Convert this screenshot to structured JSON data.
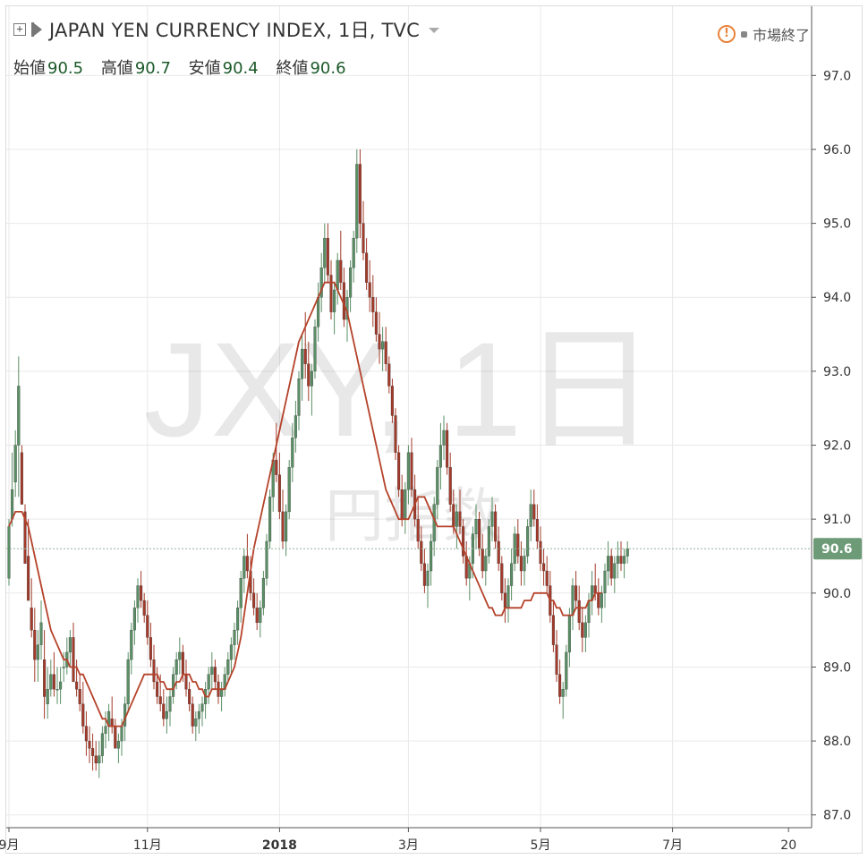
{
  "header": {
    "title": "JAPAN YEN CURRENCY INDEX, 1日, TVC",
    "market_status": "市場終了"
  },
  "ohlc": {
    "open_label": "始値",
    "open": "90.5",
    "high_label": "高値",
    "high": "90.7",
    "low_label": "安値",
    "low": "90.4",
    "close_label": "終値",
    "close": "90.6"
  },
  "watermark": {
    "symbol": "JXY, 1日",
    "name": "円指数"
  },
  "colors": {
    "up": "#5a8f65",
    "down": "#a33a2a",
    "ma": "#b5422a",
    "grid": "#e9e9e9",
    "price_tag": "#6d9a77",
    "price_line": "#8db39a"
  },
  "chart_data": {
    "type": "candlestick",
    "ylim": [
      86.9,
      97.5
    ],
    "y_ticks": [
      "87.0",
      "88.0",
      "89.0",
      "90.0",
      "91.0",
      "92.0",
      "93.0",
      "94.0",
      "95.0",
      "96.0",
      "97.0"
    ],
    "x_ticks": [
      {
        "label": "9月",
        "bar": 0
      },
      {
        "label": "11月",
        "bar": 43
      },
      {
        "label": "2018",
        "bar": 84
      },
      {
        "label": "3月",
        "bar": 124
      },
      {
        "label": "5月",
        "bar": 165
      },
      {
        "label": "7月",
        "bar": 206
      },
      {
        "label": "20",
        "bar": 242
      }
    ],
    "last_price": "90.6",
    "ma_series": "moving average",
    "ohlc_data": [
      [
        90.2,
        91.0,
        90.1,
        90.9
      ],
      [
        91.0,
        91.9,
        90.9,
        91.4
      ],
      [
        91.5,
        92.2,
        91.3,
        92.0
      ],
      [
        92.0,
        93.2,
        91.3,
        92.8
      ],
      [
        91.9,
        92.0,
        91.2,
        91.2
      ],
      [
        91.1,
        91.2,
        90.4,
        90.4
      ],
      [
        90.5,
        91.0,
        89.9,
        89.9
      ],
      [
        89.8,
        90.2,
        89.4,
        89.5
      ],
      [
        89.5,
        89.8,
        88.8,
        89.1
      ],
      [
        89.1,
        89.5,
        88.8,
        89.3
      ],
      [
        89.3,
        89.9,
        89.1,
        89.6
      ],
      [
        89.1,
        89.5,
        88.3,
        88.6
      ],
      [
        88.5,
        89.0,
        88.3,
        88.7
      ],
      [
        88.7,
        89.1,
        88.6,
        88.9
      ],
      [
        88.9,
        89.2,
        88.6,
        88.7
      ],
      [
        88.7,
        89.0,
        88.5,
        88.7
      ],
      [
        88.7,
        89.0,
        88.5,
        88.8
      ],
      [
        89.0,
        89.2,
        88.8,
        89.0
      ],
      [
        89.0,
        89.4,
        88.9,
        89.2
      ],
      [
        89.2,
        89.5,
        89.0,
        89.4
      ],
      [
        89.4,
        89.6,
        88.8,
        88.8
      ],
      [
        88.8,
        89.1,
        88.6,
        88.7
      ],
      [
        88.7,
        88.9,
        88.4,
        88.5
      ],
      [
        88.5,
        88.8,
        88.1,
        88.2
      ],
      [
        88.2,
        88.4,
        87.8,
        88.0
      ],
      [
        88.0,
        88.2,
        87.7,
        87.9
      ],
      [
        87.9,
        88.1,
        87.6,
        87.8
      ],
      [
        87.8,
        88.0,
        87.6,
        87.7
      ],
      [
        87.7,
        88.0,
        87.5,
        87.8
      ],
      [
        87.8,
        88.2,
        87.7,
        88.1
      ],
      [
        88.1,
        88.4,
        87.9,
        88.2
      ],
      [
        88.2,
        88.5,
        88.0,
        88.4
      ],
      [
        88.3,
        88.6,
        88.1,
        88.2
      ],
      [
        88.2,
        88.3,
        87.9,
        87.9
      ],
      [
        87.9,
        88.1,
        87.7,
        88.0
      ],
      [
        88.0,
        88.3,
        87.8,
        88.2
      ],
      [
        88.2,
        88.6,
        88.0,
        88.5
      ],
      [
        88.5,
        89.2,
        88.4,
        89.1
      ],
      [
        89.1,
        89.6,
        88.9,
        89.5
      ],
      [
        89.5,
        89.9,
        89.3,
        89.8
      ],
      [
        89.8,
        90.2,
        89.6,
        90.1
      ],
      [
        90.1,
        90.3,
        89.8,
        89.9
      ],
      [
        89.9,
        90.0,
        89.6,
        89.7
      ],
      [
        89.7,
        89.9,
        89.3,
        89.4
      ],
      [
        89.4,
        89.6,
        89.0,
        89.1
      ],
      [
        89.1,
        89.3,
        88.7,
        88.8
      ],
      [
        88.8,
        89.0,
        88.5,
        88.6
      ],
      [
        88.6,
        88.9,
        88.4,
        88.5
      ],
      [
        88.5,
        88.7,
        88.2,
        88.3
      ],
      [
        88.3,
        88.6,
        88.1,
        88.4
      ],
      [
        88.4,
        88.7,
        88.2,
        88.6
      ],
      [
        88.6,
        89.0,
        88.5,
        88.9
      ],
      [
        88.9,
        89.2,
        88.7,
        89.1
      ],
      [
        89.1,
        89.4,
        88.9,
        89.2
      ],
      [
        89.2,
        89.3,
        88.8,
        88.9
      ],
      [
        88.9,
        89.1,
        88.6,
        88.7
      ],
      [
        88.7,
        88.8,
        88.4,
        88.5
      ],
      [
        88.5,
        88.6,
        88.1,
        88.2
      ],
      [
        88.2,
        88.4,
        88.0,
        88.3
      ],
      [
        88.3,
        88.5,
        88.1,
        88.4
      ],
      [
        88.4,
        88.6,
        88.2,
        88.5
      ],
      [
        88.5,
        88.8,
        88.3,
        88.7
      ],
      [
        88.7,
        89.0,
        88.5,
        88.9
      ],
      [
        88.9,
        89.2,
        88.7,
        89.0
      ],
      [
        89.0,
        89.1,
        88.7,
        88.8
      ],
      [
        88.8,
        88.9,
        88.5,
        88.6
      ],
      [
        88.6,
        88.8,
        88.4,
        88.7
      ],
      [
        88.7,
        89.0,
        88.6,
        88.9
      ],
      [
        88.9,
        89.2,
        88.8,
        89.1
      ],
      [
        89.1,
        89.4,
        88.9,
        89.3
      ],
      [
        89.3,
        89.6,
        89.1,
        89.5
      ],
      [
        89.5,
        89.9,
        89.3,
        89.8
      ],
      [
        89.8,
        90.3,
        89.6,
        90.2
      ],
      [
        90.2,
        90.6,
        90.0,
        90.5
      ],
      [
        90.5,
        90.8,
        90.2,
        90.3
      ],
      [
        90.3,
        90.5,
        89.9,
        90.0
      ],
      [
        90.0,
        90.2,
        89.7,
        89.8
      ],
      [
        89.8,
        90.0,
        89.5,
        89.6
      ],
      [
        89.6,
        89.9,
        89.4,
        89.8
      ],
      [
        89.8,
        90.3,
        89.7,
        90.2
      ],
      [
        90.2,
        90.8,
        90.1,
        90.7
      ],
      [
        90.7,
        91.4,
        90.6,
        91.3
      ],
      [
        91.3,
        91.9,
        91.1,
        91.8
      ],
      [
        91.8,
        92.3,
        91.5,
        91.6
      ],
      [
        91.6,
        91.9,
        91.0,
        91.1
      ],
      [
        91.1,
        91.4,
        90.6,
        90.7
      ],
      [
        90.7,
        91.2,
        90.5,
        91.1
      ],
      [
        91.1,
        91.8,
        91.0,
        91.7
      ],
      [
        91.7,
        92.3,
        91.5,
        92.1
      ],
      [
        92.1,
        92.6,
        91.9,
        92.4
      ],
      [
        92.4,
        93.0,
        92.2,
        92.9
      ],
      [
        92.9,
        93.5,
        92.6,
        93.3
      ],
      [
        93.3,
        93.8,
        92.9,
        93.1
      ],
      [
        93.1,
        93.4,
        92.6,
        92.8
      ],
      [
        92.8,
        93.1,
        92.4,
        93.0
      ],
      [
        93.0,
        93.7,
        92.9,
        93.6
      ],
      [
        93.6,
        94.2,
        93.4,
        94.0
      ],
      [
        94.0,
        94.6,
        93.8,
        94.4
      ],
      [
        94.4,
        95.0,
        94.2,
        94.8
      ],
      [
        94.8,
        95.0,
        94.2,
        94.3
      ],
      [
        94.3,
        94.5,
        93.7,
        93.8
      ],
      [
        93.8,
        94.2,
        93.5,
        94.1
      ],
      [
        94.1,
        94.6,
        93.9,
        94.5
      ],
      [
        94.5,
        94.9,
        94.1,
        94.2
      ],
      [
        94.2,
        94.4,
        93.6,
        93.7
      ],
      [
        93.7,
        94.1,
        93.4,
        94.0
      ],
      [
        94.0,
        94.5,
        93.8,
        94.4
      ],
      [
        94.4,
        94.9,
        94.2,
        94.8
      ],
      [
        94.8,
        96.0,
        94.6,
        95.8
      ],
      [
        95.8,
        96.0,
        94.8,
        95.0
      ],
      [
        95.0,
        95.3,
        94.5,
        94.6
      ],
      [
        94.6,
        94.8,
        94.1,
        94.2
      ],
      [
        94.2,
        94.5,
        93.8,
        94.0
      ],
      [
        94.0,
        94.3,
        93.6,
        93.8
      ],
      [
        93.8,
        94.0,
        93.4,
        93.5
      ],
      [
        93.5,
        93.8,
        93.1,
        93.3
      ],
      [
        93.3,
        93.6,
        93.0,
        93.4
      ],
      [
        93.4,
        93.6,
        93.0,
        93.1
      ],
      [
        93.1,
        93.2,
        92.7,
        92.8
      ],
      [
        92.8,
        92.9,
        92.3,
        92.4
      ],
      [
        92.4,
        92.5,
        91.8,
        91.9
      ],
      [
        91.9,
        92.0,
        91.3,
        91.4
      ],
      [
        91.4,
        91.6,
        90.9,
        91.0
      ],
      [
        91.0,
        91.5,
        90.8,
        91.4
      ],
      [
        91.4,
        92.0,
        91.2,
        91.9
      ],
      [
        91.9,
        92.1,
        91.3,
        91.4
      ],
      [
        91.4,
        91.6,
        90.9,
        91.0
      ],
      [
        91.0,
        91.3,
        90.6,
        90.7
      ],
      [
        90.7,
        90.9,
        90.3,
        90.4
      ],
      [
        90.4,
        90.6,
        90.0,
        90.1
      ],
      [
        90.1,
        90.4,
        89.8,
        90.3
      ],
      [
        90.3,
        90.8,
        90.1,
        90.7
      ],
      [
        90.7,
        91.3,
        90.5,
        91.2
      ],
      [
        91.2,
        91.8,
        91.0,
        91.7
      ],
      [
        91.7,
        92.3,
        91.4,
        92.0
      ],
      [
        92.0,
        92.4,
        91.8,
        92.2
      ],
      [
        92.2,
        92.3,
        91.6,
        91.7
      ],
      [
        91.7,
        91.9,
        91.1,
        91.2
      ],
      [
        91.2,
        91.4,
        90.8,
        90.9
      ],
      [
        90.9,
        91.2,
        90.6,
        91.1
      ],
      [
        91.1,
        91.4,
        90.8,
        90.9
      ],
      [
        90.9,
        91.0,
        90.4,
        90.5
      ],
      [
        90.5,
        90.7,
        90.1,
        90.2
      ],
      [
        90.2,
        90.5,
        89.9,
        90.4
      ],
      [
        90.4,
        90.9,
        90.2,
        90.8
      ],
      [
        90.8,
        91.2,
        90.6,
        91.0
      ],
      [
        91.0,
        91.1,
        90.5,
        90.6
      ],
      [
        90.6,
        90.8,
        90.2,
        90.3
      ],
      [
        90.3,
        90.6,
        90.1,
        90.5
      ],
      [
        90.5,
        91.0,
        90.4,
        90.9
      ],
      [
        90.9,
        91.3,
        90.7,
        91.1
      ],
      [
        91.1,
        91.2,
        90.6,
        90.7
      ],
      [
        90.7,
        90.9,
        90.3,
        90.4
      ],
      [
        90.4,
        90.5,
        89.9,
        90.0
      ],
      [
        90.0,
        90.2,
        89.6,
        89.8
      ],
      [
        89.8,
        90.2,
        89.6,
        90.1
      ],
      [
        90.1,
        90.6,
        89.9,
        90.4
      ],
      [
        90.4,
        90.9,
        90.3,
        90.8
      ],
      [
        90.8,
        91.0,
        90.4,
        90.5
      ],
      [
        90.5,
        90.7,
        90.1,
        90.3
      ],
      [
        90.3,
        90.6,
        90.1,
        90.5
      ],
      [
        90.5,
        91.0,
        90.4,
        90.9
      ],
      [
        90.9,
        91.4,
        90.7,
        91.2
      ],
      [
        91.2,
        91.4,
        90.9,
        91.0
      ],
      [
        91.0,
        91.2,
        90.6,
        90.7
      ],
      [
        90.7,
        90.9,
        90.3,
        90.4
      ],
      [
        90.4,
        90.6,
        90.1,
        90.3
      ],
      [
        90.3,
        90.5,
        90.0,
        90.1
      ],
      [
        90.1,
        90.3,
        89.6,
        89.7
      ],
      [
        89.7,
        89.9,
        89.2,
        89.3
      ],
      [
        89.3,
        89.5,
        88.8,
        88.9
      ],
      [
        88.9,
        89.1,
        88.5,
        88.6
      ],
      [
        88.6,
        88.8,
        88.3,
        88.7
      ],
      [
        88.7,
        89.3,
        88.6,
        89.2
      ],
      [
        89.2,
        89.8,
        89.0,
        89.7
      ],
      [
        89.7,
        90.2,
        89.5,
        90.1
      ],
      [
        90.1,
        90.3,
        89.8,
        89.9
      ],
      [
        89.9,
        90.1,
        89.5,
        89.6
      ],
      [
        89.6,
        89.8,
        89.2,
        89.4
      ],
      [
        89.4,
        89.7,
        89.2,
        89.6
      ],
      [
        89.6,
        90.0,
        89.4,
        89.9
      ],
      [
        89.9,
        90.3,
        89.7,
        90.1
      ],
      [
        90.1,
        90.4,
        89.9,
        90.0
      ],
      [
        90.0,
        90.2,
        89.7,
        89.8
      ],
      [
        89.8,
        90.1,
        89.6,
        90.0
      ],
      [
        90.0,
        90.4,
        89.8,
        90.3
      ],
      [
        90.3,
        90.7,
        90.1,
        90.5
      ],
      [
        90.5,
        90.6,
        90.1,
        90.2
      ],
      [
        90.2,
        90.5,
        90.0,
        90.4
      ],
      [
        90.4,
        90.7,
        90.2,
        90.5
      ],
      [
        90.5,
        90.7,
        90.3,
        90.4
      ],
      [
        90.4,
        90.6,
        90.2,
        90.5
      ],
      [
        90.5,
        90.7,
        90.4,
        90.6
      ]
    ],
    "ma_values": [
      90.9,
      91.0,
      91.1,
      91.1,
      91.1,
      91.0,
      90.9,
      90.7,
      90.5,
      90.3,
      90.1,
      89.9,
      89.7,
      89.5,
      89.4,
      89.3,
      89.2,
      89.1,
      89.1,
      89.0,
      89.0,
      89.0,
      88.9,
      88.9,
      88.8,
      88.7,
      88.6,
      88.5,
      88.4,
      88.3,
      88.3,
      88.2,
      88.2,
      88.2,
      88.2,
      88.2,
      88.3,
      88.4,
      88.5,
      88.6,
      88.7,
      88.8,
      88.9,
      88.9,
      88.9,
      88.9,
      88.9,
      88.8,
      88.8,
      88.7,
      88.7,
      88.7,
      88.8,
      88.8,
      88.9,
      88.9,
      88.9,
      88.8,
      88.8,
      88.7,
      88.7,
      88.6,
      88.6,
      88.7,
      88.7,
      88.7,
      88.7,
      88.7,
      88.8,
      88.9,
      89.0,
      89.2,
      89.4,
      89.7,
      90.0,
      90.3,
      90.6,
      90.8,
      91.0,
      91.2,
      91.4,
      91.6,
      91.8,
      92.0,
      92.2,
      92.4,
      92.6,
      92.8,
      93.0,
      93.2,
      93.4,
      93.5,
      93.6,
      93.7,
      93.8,
      93.9,
      94.0,
      94.1,
      94.2,
      94.2,
      94.2,
      94.2,
      94.1,
      94.0,
      93.9,
      93.8,
      93.6,
      93.4,
      93.2,
      93.0,
      92.8,
      92.6,
      92.4,
      92.2,
      92.0,
      91.8,
      91.6,
      91.4,
      91.3,
      91.2,
      91.1,
      91.0,
      91.0,
      91.0,
      91.0,
      91.1,
      91.2,
      91.3,
      91.3,
      91.3,
      91.2,
      91.1,
      91.0,
      90.9,
      90.9,
      90.9,
      90.9,
      90.9,
      90.9,
      90.8,
      90.7,
      90.6,
      90.5,
      90.4,
      90.3,
      90.2,
      90.1,
      90.0,
      89.9,
      89.8,
      89.8,
      89.7,
      89.7,
      89.7,
      89.8,
      89.8,
      89.8,
      89.8,
      89.8,
      89.8,
      89.9,
      89.9,
      89.9,
      90.0,
      90.0,
      90.0,
      90.0,
      90.0,
      89.9,
      89.9,
      89.8,
      89.8,
      89.7,
      89.7,
      89.7,
      89.7,
      89.8,
      89.8,
      89.8,
      89.8,
      89.9,
      89.9,
      90.0,
      90.0,
      90.0
    ]
  }
}
